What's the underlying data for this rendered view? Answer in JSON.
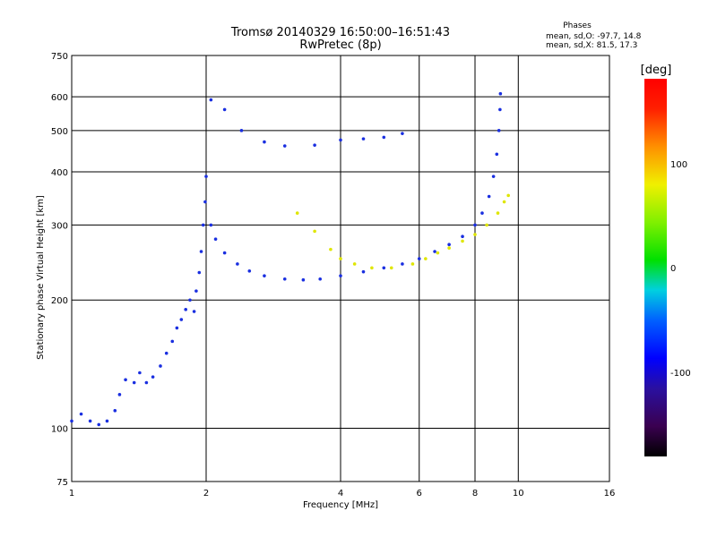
{
  "chart_data": {
    "type": "scatter",
    "title": "Tromsø 20140329 16:50:00–16:51:43",
    "subtitle": "RwPretec (8p)",
    "xlabel": "Frequency [MHz]",
    "ylabel": "Stationary phase Virtual Height [km]",
    "x_scale": "log",
    "y_scale": "log",
    "xlim": [
      1,
      16
    ],
    "ylim": [
      75,
      750
    ],
    "x_ticks": [
      "1",
      "2",
      "4",
      "6",
      "8",
      "10",
      "16"
    ],
    "x_tick_values": [
      1,
      2,
      4,
      6,
      8,
      10,
      16
    ],
    "y_ticks": [
      "75",
      "100",
      "200",
      "300",
      "400",
      "500",
      "600",
      "750"
    ],
    "y_tick_values": [
      75,
      100,
      200,
      300,
      400,
      500,
      600,
      750
    ],
    "grid": true,
    "stats": {
      "header": "Phases",
      "line1": "mean, sd,O: -97.7, 14.8",
      "line2": "mean, sd,X:  81.5, 17.3"
    },
    "colorbar": {
      "unit": "[deg]",
      "range": [
        -180,
        180
      ],
      "tick_labels": [
        "100",
        "0",
        "-100"
      ],
      "tick_values": [
        100,
        0,
        -100
      ]
    },
    "series": [
      {
        "trace": "O-mode E/F1 low-frequency trace",
        "phase_deg": -100,
        "points": [
          [
            1.0,
            104
          ],
          [
            1.05,
            108
          ],
          [
            1.1,
            104
          ],
          [
            1.15,
            102
          ],
          [
            1.2,
            104
          ],
          [
            1.25,
            110
          ],
          [
            1.28,
            120
          ],
          [
            1.32,
            130
          ],
          [
            1.38,
            128
          ],
          [
            1.42,
            135
          ],
          [
            1.47,
            128
          ],
          [
            1.52,
            132
          ],
          [
            1.58,
            140
          ],
          [
            1.63,
            150
          ],
          [
            1.68,
            160
          ],
          [
            1.72,
            172
          ],
          [
            1.76,
            180
          ],
          [
            1.8,
            190
          ],
          [
            1.84,
            200
          ],
          [
            1.88,
            188
          ],
          [
            1.9,
            210
          ],
          [
            1.93,
            232
          ],
          [
            1.95,
            260
          ],
          [
            1.97,
            300
          ],
          [
            1.99,
            340
          ],
          [
            2.0,
            390
          ]
        ]
      },
      {
        "trace": "O-mode F-region trace",
        "phase_deg": -100,
        "points": [
          [
            2.05,
            300
          ],
          [
            2.1,
            278
          ],
          [
            2.2,
            258
          ],
          [
            2.35,
            243
          ],
          [
            2.5,
            234
          ],
          [
            2.7,
            228
          ],
          [
            3.0,
            224
          ],
          [
            3.3,
            223
          ],
          [
            3.6,
            224
          ],
          [
            4.0,
            228
          ],
          [
            4.5,
            233
          ],
          [
            5.0,
            238
          ],
          [
            5.5,
            243
          ],
          [
            6.0,
            250
          ],
          [
            6.5,
            260
          ],
          [
            7.0,
            270
          ],
          [
            7.5,
            282
          ],
          [
            8.0,
            300
          ],
          [
            8.3,
            320
          ],
          [
            8.6,
            350
          ],
          [
            8.8,
            390
          ],
          [
            8.95,
            440
          ],
          [
            9.05,
            500
          ],
          [
            9.1,
            560
          ],
          [
            9.12,
            610
          ]
        ]
      },
      {
        "trace": "O-mode multiple-hop echo",
        "phase_deg": -100,
        "points": [
          [
            2.05,
            590
          ],
          [
            2.2,
            560
          ],
          [
            2.4,
            500
          ],
          [
            2.7,
            470
          ],
          [
            3.0,
            460
          ],
          [
            3.5,
            462
          ],
          [
            4.0,
            475
          ],
          [
            4.5,
            478
          ],
          [
            5.0,
            482
          ],
          [
            5.5,
            492
          ]
        ]
      },
      {
        "trace": "X-mode F-region trace",
        "phase_deg": 100,
        "points": [
          [
            3.2,
            320
          ],
          [
            3.5,
            290
          ],
          [
            3.8,
            263
          ],
          [
            4.0,
            250
          ],
          [
            4.3,
            243
          ],
          [
            4.7,
            238
          ],
          [
            5.2,
            238
          ],
          [
            5.8,
            243
          ],
          [
            6.2,
            250
          ],
          [
            6.6,
            258
          ],
          [
            7.0,
            265
          ],
          [
            7.5,
            275
          ],
          [
            8.0,
            285
          ],
          [
            8.5,
            300
          ],
          [
            9.0,
            320
          ],
          [
            9.3,
            340
          ],
          [
            9.5,
            352
          ]
        ]
      }
    ]
  }
}
